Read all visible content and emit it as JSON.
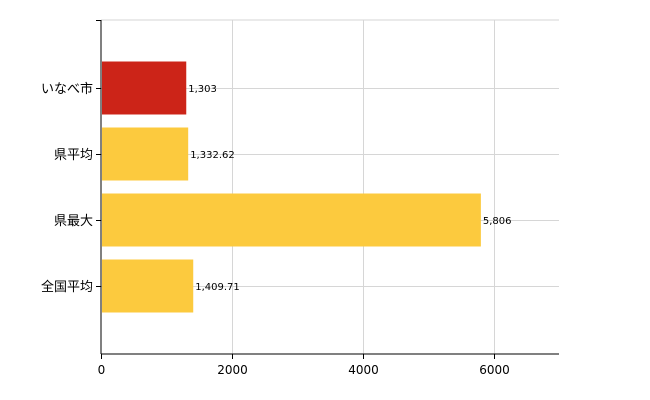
{
  "chart_data": {
    "type": "bar",
    "orientation": "horizontal",
    "categories": [
      "いなべ市",
      "県平均",
      "県最大",
      "全国平均"
    ],
    "values": [
      1303,
      1332.62,
      5806,
      1409.71
    ],
    "value_labels": [
      "1,303",
      "1,332.62",
      "5,806",
      "1,409.71"
    ],
    "bar_colors": [
      "#cc2418",
      "#fcca3e",
      "#fcca3e",
      "#fcca3e"
    ],
    "xlim": [
      0,
      7000
    ],
    "x_ticks": [
      0,
      2000,
      4000,
      6000
    ],
    "x_tick_labels": [
      "0",
      "2000",
      "4000",
      "6000"
    ],
    "grid": true,
    "title": "",
    "xlabel": "",
    "ylabel": ""
  }
}
